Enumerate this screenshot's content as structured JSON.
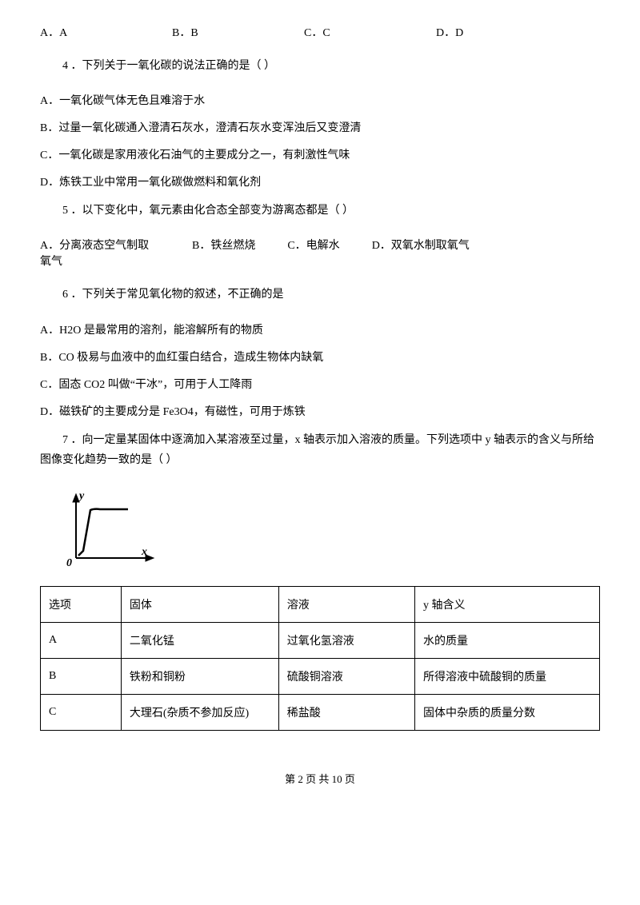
{
  "topOptions": {
    "a": "A．A",
    "b": "B．B",
    "c": "C．C",
    "d": "D．D"
  },
  "q4": {
    "stem": "4 ．下列关于一氧化碳的说法正确的是（    ）",
    "a": "A．一氧化碳气体无色且难溶于水",
    "b": "B．过量一氧化碳通入澄清石灰水，澄清石灰水变浑浊后又变澄清",
    "c": "C．一氧化碳是家用液化石油气的主要成分之一，有刺激性气味",
    "d": "D．炼铁工业中常用一氧化碳做燃料和氧化剂"
  },
  "q5": {
    "stem": "5 ．以下变化中，氧元素由化合态全部变为游离态都是（    ）",
    "a": "A．分离液态空气制取氧气",
    "b": "B．铁丝燃烧",
    "c": "C．电解水",
    "d": "D．双氧水制取氧气"
  },
  "q6": {
    "stem": "6 ．下列关于常见氧化物的叙述，不正确的是",
    "a": "A．H2O 是最常用的溶剂，能溶解所有的物质",
    "b": "B．CO 极易与血液中的血红蛋白结合，造成生物体内缺氧",
    "c": "C．固态 CO2 叫做“干冰”，可用于人工降雨",
    "d": "D．磁铁矿的主要成分是 Fe3O4，有磁性，可用于炼铁"
  },
  "q7": {
    "stem1": "7 ．向一定量某固体中逐滴加入某溶液至过量，x 轴表示加入溶液的质量。下列选项中 y 轴表示的含义与所给",
    "stem2": "图像变化趋势一致的是（    ）"
  },
  "chart": {
    "yLabel": "y",
    "xLabel": "x",
    "originLabel": "0",
    "axisColor": "#000000",
    "lineColor": "#000000",
    "lineWidth": 2.5,
    "width": 130,
    "height": 110
  },
  "table": {
    "headers": [
      "选项",
      "固体",
      "溶液",
      "y 轴含义"
    ],
    "rows": [
      [
        "A",
        "二氧化锰",
        "过氧化氢溶液",
        "水的质量"
      ],
      [
        "B",
        "铁粉和铜粉",
        "硫酸铜溶液",
        "所得溶液中硫酸铜的质量"
      ],
      [
        "C",
        "大理石(杂质不参加反应)",
        "稀盐酸",
        "固体中杂质的质量分数"
      ]
    ],
    "colWidths": [
      "90px",
      "200px",
      "170px",
      "240px"
    ]
  },
  "footer": "第 2 页 共 10 页"
}
